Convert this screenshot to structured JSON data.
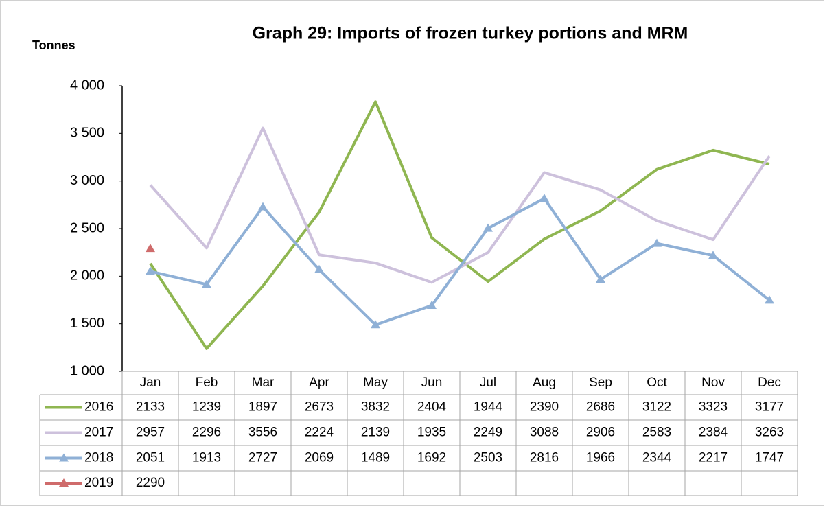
{
  "chart_data": {
    "type": "line",
    "title": "Graph 29: Imports of frozen turkey portions and MRM",
    "y_label": "Tonnes",
    "categories": [
      "Jan",
      "Feb",
      "Mar",
      "Apr",
      "May",
      "Jun",
      "Jul",
      "Aug",
      "Sep",
      "Oct",
      "Nov",
      "Dec"
    ],
    "ylim": [
      1000,
      4000
    ],
    "yticks": [
      {
        "value": 1000,
        "label": "1 000"
      },
      {
        "value": 1500,
        "label": "1 500"
      },
      {
        "value": 2000,
        "label": "2 000"
      },
      {
        "value": 2500,
        "label": "2 500"
      },
      {
        "value": 3000,
        "label": "3 000"
      },
      {
        "value": 3500,
        "label": "3 500"
      },
      {
        "value": 4000,
        "label": "4 000"
      }
    ],
    "grid": false,
    "data_table": true,
    "series": [
      {
        "name": "2016",
        "color": "#8fb651",
        "marker": "none",
        "values": [
          2133,
          1239,
          1897,
          2673,
          3832,
          2404,
          1944,
          2390,
          2686,
          3122,
          3323,
          3177
        ]
      },
      {
        "name": "2017",
        "color": "#cdc1dc",
        "marker": "none",
        "values": [
          2957,
          2296,
          3556,
          2224,
          2139,
          1935,
          2249,
          3088,
          2906,
          2583,
          2384,
          3263
        ]
      },
      {
        "name": "2018",
        "color": "#8fb0d6",
        "marker": "triangle",
        "values": [
          2051,
          1913,
          2727,
          2069,
          1489,
          1692,
          2503,
          2816,
          1966,
          2344,
          2217,
          1747
        ]
      },
      {
        "name": "2019",
        "color": "#cf6b6b",
        "marker": "triangle",
        "values": [
          2290,
          null,
          null,
          null,
          null,
          null,
          null,
          null,
          null,
          null,
          null,
          null
        ]
      }
    ]
  }
}
